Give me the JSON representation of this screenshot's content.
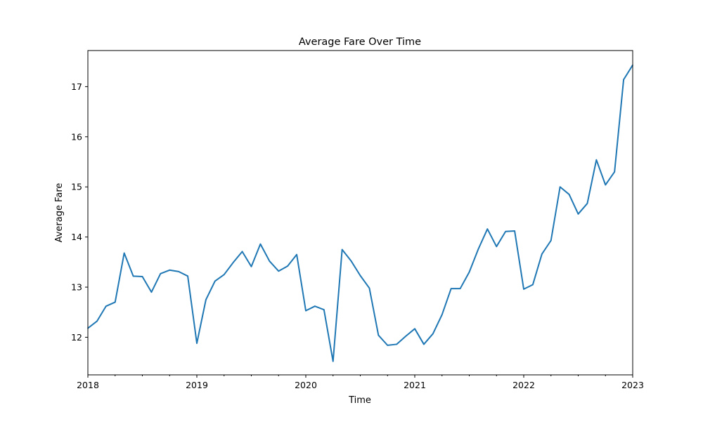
{
  "chart_data": {
    "type": "line",
    "title": "Average Fare Over Time",
    "xlabel": "Time",
    "ylabel": "Average Fare",
    "xlim": [
      "2018-01",
      "2023-01"
    ],
    "ylim": [
      11.25,
      17.72
    ],
    "x_ticks": [
      "2018",
      "2019",
      "2020",
      "2021",
      "2022",
      "2023"
    ],
    "y_ticks": [
      "12",
      "13",
      "14",
      "15",
      "16",
      "17"
    ],
    "grid": false,
    "legend": "none",
    "series": [
      {
        "color": "#1f77b4",
        "x": [
          "2018-01",
          "2018-02",
          "2018-03",
          "2018-04",
          "2018-05",
          "2018-06",
          "2018-07",
          "2018-08",
          "2018-09",
          "2018-10",
          "2018-11",
          "2018-12",
          "2019-01",
          "2019-02",
          "2019-03",
          "2019-04",
          "2019-05",
          "2019-06",
          "2019-07",
          "2019-08",
          "2019-09",
          "2019-10",
          "2019-11",
          "2019-12",
          "2020-01",
          "2020-02",
          "2020-03",
          "2020-04",
          "2020-05",
          "2020-06",
          "2020-07",
          "2020-08",
          "2020-09",
          "2020-10",
          "2020-11",
          "2020-12",
          "2021-01",
          "2021-02",
          "2021-03",
          "2021-04",
          "2021-05",
          "2021-06",
          "2021-07",
          "2021-08",
          "2021-09",
          "2021-10",
          "2021-11",
          "2021-12",
          "2022-01",
          "2022-02",
          "2022-03",
          "2022-04",
          "2022-05",
          "2022-06",
          "2022-07",
          "2022-08",
          "2022-09",
          "2022-10",
          "2022-11",
          "2022-12",
          "2023-01"
        ],
        "values": [
          12.18,
          12.32,
          12.62,
          12.7,
          13.68,
          13.22,
          13.21,
          12.9,
          13.27,
          13.34,
          13.31,
          13.22,
          11.88,
          12.75,
          13.12,
          13.25,
          13.49,
          13.71,
          13.41,
          13.86,
          13.52,
          13.32,
          13.42,
          13.65,
          12.53,
          12.62,
          12.55,
          11.52,
          13.75,
          13.52,
          13.23,
          12.98,
          12.04,
          11.84,
          11.86,
          12.02,
          12.17,
          11.86,
          12.07,
          12.45,
          12.97,
          12.97,
          13.3,
          13.76,
          14.16,
          13.81,
          14.11,
          14.12,
          12.96,
          13.05,
          13.66,
          13.93,
          15.0,
          14.85,
          14.46,
          14.67,
          15.54,
          15.04,
          15.3,
          17.14,
          17.43
        ]
      }
    ]
  }
}
